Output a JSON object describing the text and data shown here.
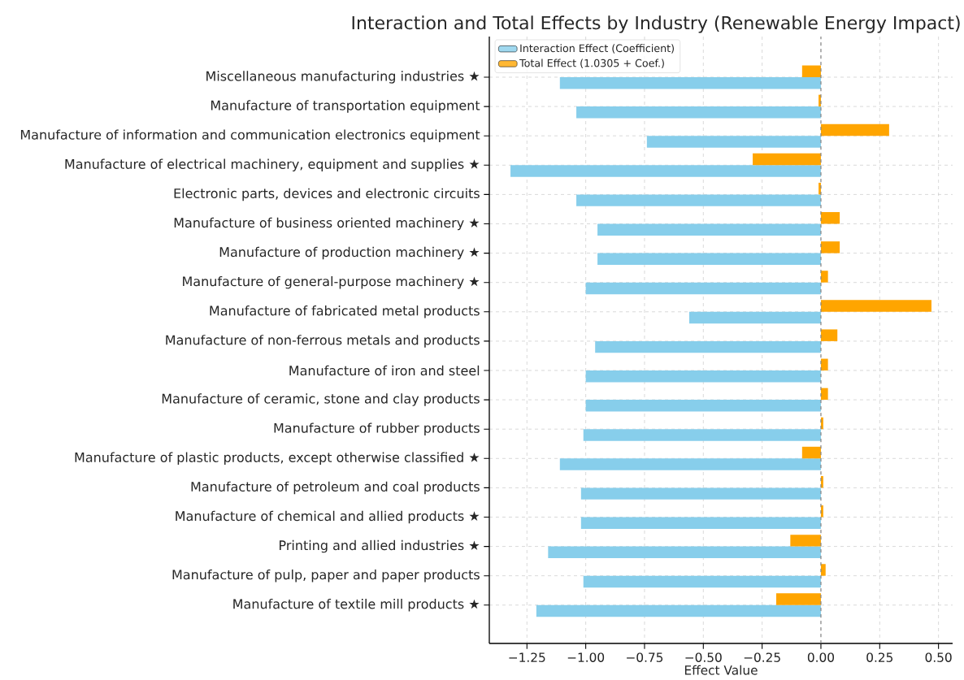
{
  "chart_data": {
    "type": "bar",
    "orientation": "horizontal",
    "title": "Interaction and Total Effects by Industry (Renewable Energy Impact)",
    "xlabel": "Effect Value",
    "categories": [
      "Miscellaneous manufacturing industries ★",
      "Manufacture of transportation equipment",
      "Manufacture of information and communication electronics equipment",
      "Manufacture of electrical machinery, equipment and supplies ★",
      "Electronic parts, devices and electronic circuits",
      "Manufacture of business oriented machinery ★",
      "Manufacture of production machinery ★",
      "Manufacture of general-purpose machinery ★",
      "Manufacture of fabricated metal products",
      "Manufacture of non-ferrous metals and products",
      "Manufacture of iron and steel",
      "Manufacture of ceramic, stone and clay products",
      "Manufacture of rubber products",
      "Manufacture of plastic products, except otherwise classified ★",
      "Manufacture of petroleum and coal products",
      "Manufacture of chemical and allied products ★",
      "Printing and allied industries ★",
      "Manufacture of pulp, paper and paper products",
      "Manufacture of textile mill products ★"
    ],
    "series": [
      {
        "name": "Interaction Effect (Coefficient)",
        "color": "#87ceeb",
        "values": [
          -1.11,
          -1.04,
          -0.74,
          -1.32,
          -1.04,
          -0.95,
          -0.95,
          -1.0,
          -0.56,
          -0.96,
          -1.0,
          -1.0,
          -1.01,
          -1.11,
          -1.02,
          -1.02,
          -1.16,
          -1.01,
          -1.21
        ]
      },
      {
        "name": "Total Effect (1.0305 + Coef.)",
        "color": "#ffa500",
        "values": [
          -0.08,
          -0.01,
          0.29,
          -0.29,
          -0.01,
          0.08,
          0.08,
          0.03,
          0.47,
          0.07,
          0.03,
          0.03,
          0.01,
          -0.08,
          0.01,
          0.01,
          -0.13,
          0.02,
          -0.19
        ]
      }
    ],
    "xlim": [
      -1.41,
      0.56
    ],
    "xticks": [
      {
        "value": -1.25,
        "label": "−1.25"
      },
      {
        "value": -1.0,
        "label": "−1.00"
      },
      {
        "value": -0.75,
        "label": "−0.75"
      },
      {
        "value": -0.5,
        "label": "−0.50"
      },
      {
        "value": -0.25,
        "label": "−0.25"
      },
      {
        "value": 0,
        "label": "0.00"
      },
      {
        "value": 0.25,
        "label": "0.25"
      },
      {
        "value": 0.5,
        "label": "0.50"
      }
    ],
    "ref_lines": [
      {
        "axis": "x",
        "value": 0,
        "color": "#808080",
        "line_style": "dashed"
      }
    ],
    "grid": true,
    "legend": "top left"
  }
}
